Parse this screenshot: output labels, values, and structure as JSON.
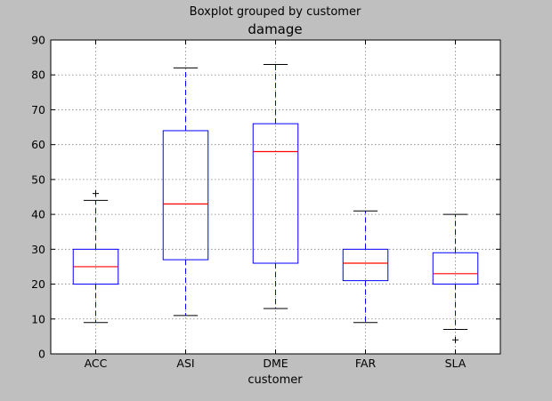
{
  "chart_data": {
    "type": "boxplot",
    "suptitle": "Boxplot grouped by customer",
    "title": "damage",
    "xlabel": "customer",
    "ylabel": "",
    "ylim": [
      0,
      90
    ],
    "yticks": [
      0,
      10,
      20,
      30,
      40,
      50,
      60,
      70,
      80,
      90
    ],
    "grid": true,
    "categories": [
      "ACC",
      "ASI",
      "DME",
      "FAR",
      "SLA"
    ],
    "boxes": [
      {
        "category": "ACC",
        "whislo": 9,
        "q1": 20,
        "median": 25,
        "q3": 30,
        "whishi": 44,
        "fliers": [
          46
        ]
      },
      {
        "category": "ASI",
        "whislo": 11,
        "q1": 27,
        "median": 43,
        "q3": 64,
        "whishi": 82,
        "fliers": []
      },
      {
        "category": "DME",
        "whislo": 13,
        "q1": 26,
        "median": 58,
        "q3": 66,
        "whishi": 83,
        "fliers": []
      },
      {
        "category": "FAR",
        "whislo": 9,
        "q1": 21,
        "median": 26,
        "q3": 30,
        "whishi": 41,
        "fliers": []
      },
      {
        "category": "SLA",
        "whislo": 7,
        "q1": 20,
        "median": 23,
        "q3": 29,
        "whishi": 40,
        "fliers": [
          4
        ]
      }
    ],
    "colors": {
      "figure_bg": "#bfbfbf",
      "plot_bg": "#ffffff",
      "box": "#0000ff",
      "median": "#ff0000",
      "cap": "#000000",
      "grid": "#808080"
    }
  }
}
